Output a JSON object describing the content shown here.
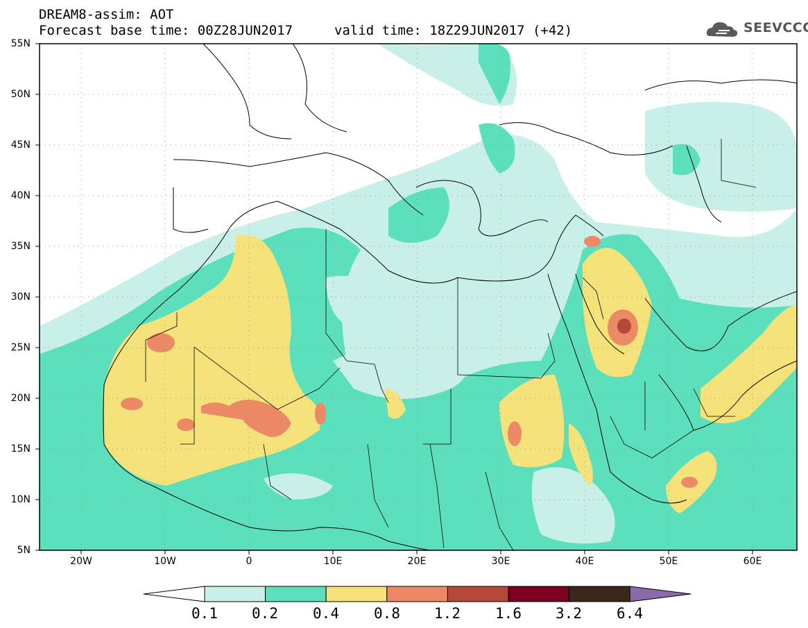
{
  "header": {
    "title": "DREAM8-assim: AOT",
    "base_time": "Forecast base time: 00Z28JUN2017",
    "valid_time": "valid time: 18Z29JUN2017 (+42)"
  },
  "logo": {
    "name": "cloud-logo-icon",
    "text": "SEEVCCC"
  },
  "map": {
    "lat_labels": [
      "55N",
      "50N",
      "45N",
      "40N",
      "35N",
      "30N",
      "25N",
      "20N",
      "15N",
      "10N",
      "5N"
    ],
    "lon_labels": [
      "20W",
      "10W",
      "0",
      "10E",
      "20E",
      "30E",
      "40E",
      "50E",
      "60E"
    ],
    "grid": true
  },
  "colorbar": {
    "boundaries": [
      "0.1",
      "0.2",
      "0.4",
      "0.8",
      "1.2",
      "1.6",
      "3.2",
      "6.4"
    ],
    "colors": [
      "#ffffff",
      "#c8f0e8",
      "#5ce0bc",
      "#f5e27a",
      "#eb8a64",
      "#b4483a",
      "#7a0022",
      "#3c2818",
      "#8a6aa8"
    ]
  },
  "fields": {
    "c1": "#c8f0e8",
    "c2": "#5ce0bc",
    "c3": "#f5e27a",
    "c4": "#eb8a64",
    "c5": "#b4483a"
  }
}
